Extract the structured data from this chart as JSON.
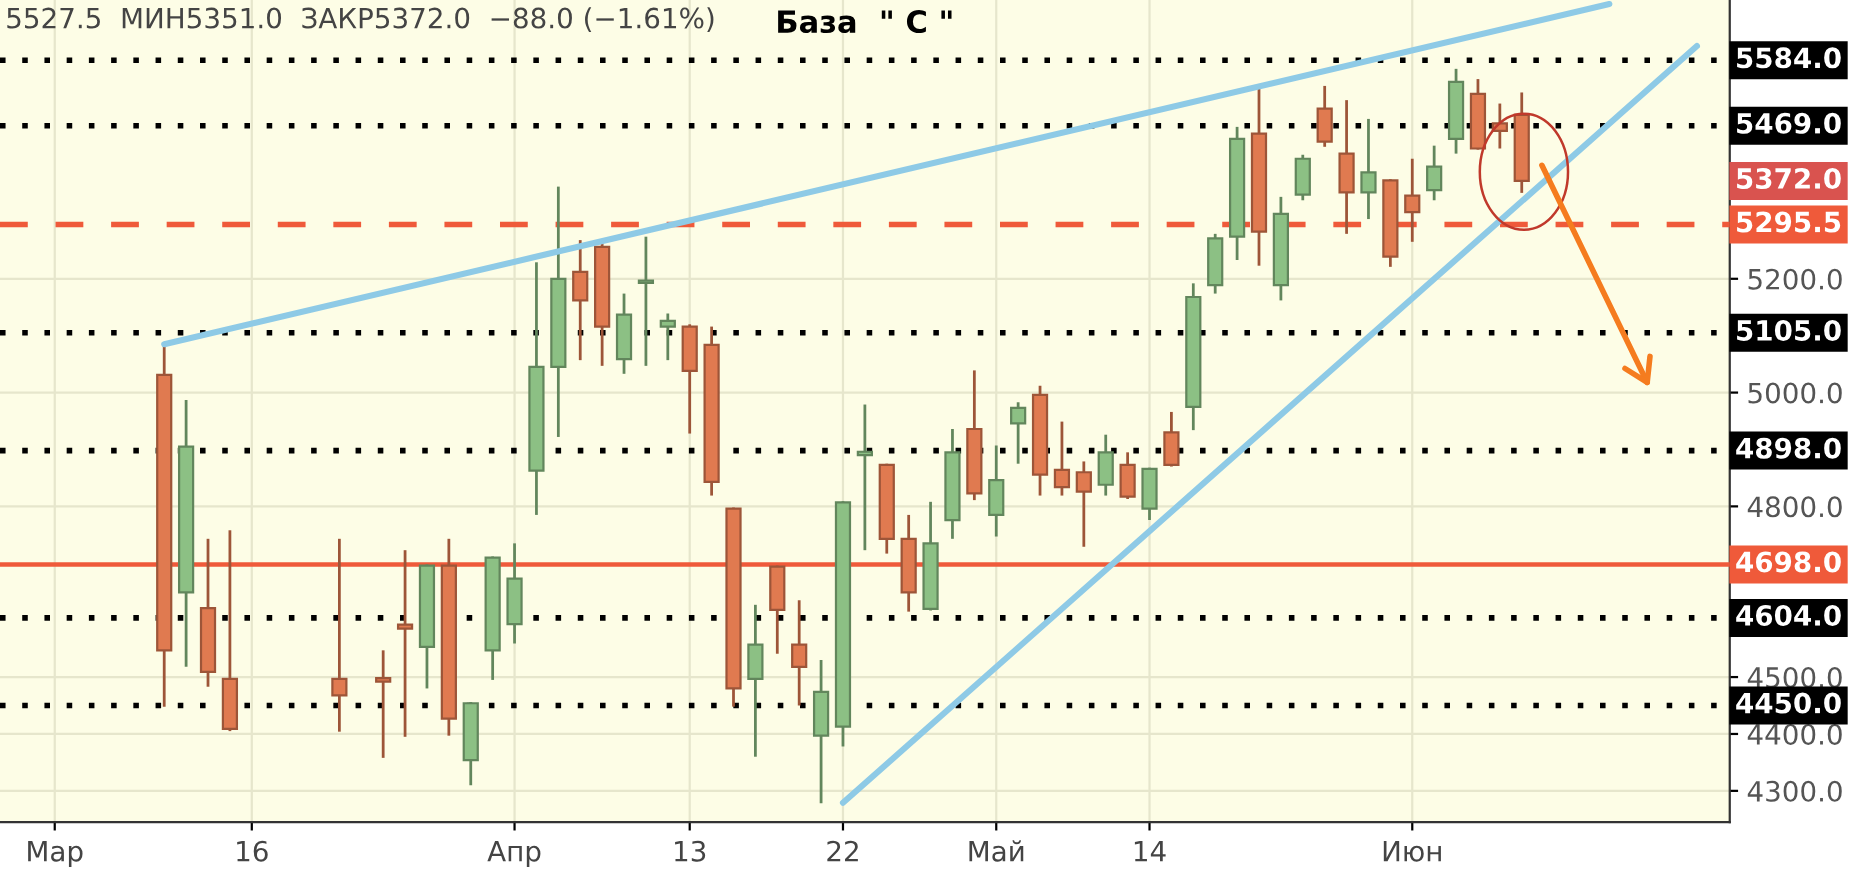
{
  "chart_data": {
    "type": "candlestick",
    "title": "База  \" С \"",
    "categories": [
      null,
      null,
      "Мар",
      null,
      null,
      null,
      null,
      null,
      null,
      null,
      null,
      "16",
      null,
      null,
      null,
      null,
      null,
      null,
      null,
      null,
      null,
      null,
      null,
      "Апр",
      null,
      null,
      null,
      null,
      null,
      null,
      null,
      "13",
      null,
      null,
      null,
      null,
      null,
      null,
      "22",
      null,
      null,
      null,
      null,
      null,
      null,
      "Май",
      null,
      null,
      null,
      null,
      null,
      null,
      "14",
      null,
      null,
      null,
      null,
      null,
      null,
      null,
      null,
      null,
      null,
      null,
      "Июн",
      null,
      null,
      null,
      null,
      null,
      null,
      null,
      null,
      null,
      null,
      null,
      null,
      null,
      null
    ],
    "ohlc": [
      null,
      null,
      null,
      null,
      null,
      null,
      null,
      [
        5031,
        5083,
        4448,
        4547
      ],
      [
        4649,
        4987,
        4518,
        4905
      ],
      [
        4621,
        4743,
        4483,
        4509
      ],
      [
        4497,
        4758,
        4405,
        4409
      ],
      null,
      null,
      null,
      null,
      [
        4497,
        4743,
        4404,
        4468
      ],
      null,
      [
        4498,
        4547,
        4358,
        4492
      ],
      [
        4592,
        4723,
        4395,
        4585
      ],
      [
        4553,
        4698,
        4480,
        4696
      ],
      [
        4696,
        4743,
        4397,
        4427
      ],
      [
        4354,
        4456,
        4310,
        4454
      ],
      [
        4547,
        4712,
        4495,
        4710
      ],
      [
        4593,
        4735,
        4559,
        4673
      ],
      [
        4863,
        5229,
        4785,
        5045
      ],
      [
        5045,
        5362,
        4922,
        5200
      ],
      [
        5212,
        5268,
        5057,
        5162
      ],
      [
        5256,
        5262,
        5047,
        5116
      ],
      [
        5059,
        5174,
        5033,
        5137
      ],
      [
        5193,
        5274,
        5047,
        5197
      ],
      [
        5116,
        5139,
        5057,
        5126
      ],
      [
        5116,
        5120,
        4928,
        5038
      ],
      [
        5084,
        5116,
        4819,
        4843
      ],
      [
        4796,
        4798,
        4448,
        4480
      ],
      [
        4497,
        4627,
        4360,
        4557
      ],
      [
        4694,
        4696,
        4541,
        4618
      ],
      [
        4557,
        4635,
        4450,
        4518
      ],
      [
        4397,
        4530,
        4278,
        4474
      ],
      [
        4413,
        4809,
        4378,
        4807
      ],
      [
        4890,
        4979,
        4723,
        4896
      ],
      [
        4873,
        4875,
        4717,
        4743
      ],
      [
        4743,
        4785,
        4615,
        4649
      ],
      [
        4620,
        4808,
        4617,
        4735
      ],
      [
        4776,
        4936,
        4743,
        4895
      ],
      [
        4936,
        5039,
        4811,
        4823
      ],
      [
        4785,
        4907,
        4747,
        4846
      ],
      [
        4946,
        4983,
        4875,
        4973
      ],
      [
        4996,
        5012,
        4819,
        4856
      ],
      [
        4864,
        4949,
        4819,
        4834
      ],
      [
        4860,
        4879,
        4729,
        4826
      ],
      [
        4838,
        4926,
        4819,
        4895
      ],
      [
        4873,
        4895,
        4813,
        4817
      ],
      [
        4796,
        4868,
        4776,
        4866
      ],
      [
        4930,
        4966,
        4870,
        4873
      ],
      [
        4975,
        5192,
        4934,
        5168
      ],
      [
        5189,
        5279,
        5174,
        5271
      ],
      [
        5274,
        5467,
        5233,
        5446
      ],
      [
        5455,
        5537,
        5223,
        5283
      ],
      [
        5189,
        5344,
        5162,
        5314
      ],
      [
        5348,
        5418,
        5338,
        5411
      ],
      [
        5499,
        5539,
        5432,
        5441
      ],
      [
        5420,
        5514,
        5279,
        5352
      ],
      [
        5352,
        5481,
        5305,
        5387
      ],
      [
        5373,
        5375,
        5221,
        5239
      ],
      [
        5346,
        5411,
        5265,
        5317
      ],
      [
        5356,
        5434,
        5338,
        5397
      ],
      [
        5446,
        5569,
        5420,
        5546
      ],
      [
        5525,
        5551,
        5427,
        5429
      ],
      [
        5473,
        5508,
        5429,
        5460
      ],
      [
        5488,
        5527.5,
        5351,
        5372
      ],
      null,
      null,
      null,
      null,
      null,
      null,
      null,
      null,
      null
    ],
    "colors": [
      null,
      null,
      null,
      null,
      null,
      null,
      null,
      "#e07a50",
      "#8cc084",
      "#e07a50",
      "#e07a50",
      null,
      null,
      null,
      null,
      "#e07a50",
      null,
      "#e07a50",
      "#e07a50",
      "#8cc084",
      "#e07a50",
      "#8cc084",
      "#8cc084",
      "#8cc084",
      "#8cc084",
      "#8cc084",
      "#e07a50",
      "#e07a50",
      "#8cc084",
      "#8cc084",
      "#8cc084",
      "#e07a50",
      "#e07a50",
      "#e07a50",
      "#8cc084",
      "#e07a50",
      "#e07a50",
      "#8cc084",
      "#8cc084",
      "#8cc084",
      "#e07a50",
      "#e07a50",
      "#8cc084",
      "#8cc084",
      "#e07a50",
      "#8cc084",
      "#8cc084",
      "#e07a50",
      "#e07a50",
      "#e07a50",
      "#8cc084",
      "#e07a50",
      "#8cc084",
      "#e07a50",
      "#8cc084",
      "#8cc084",
      "#8cc084",
      "#e07a50",
      "#8cc084",
      "#8cc084",
      "#e07a50",
      "#e07a50",
      "#8cc084",
      "#e07a50",
      "#e07a50",
      "#8cc084",
      "#8cc084",
      "#e07a50",
      "#e07a50",
      "#e07a50",
      null,
      null,
      null,
      null,
      null,
      null,
      null,
      null,
      null
    ],
    "series": [
      {
        "type": "line",
        "color": "#8ecae6",
        "values": [
          null,
          null,
          null,
          null,
          null,
          null,
          null,
          5085,
          null,
          null,
          null,
          null,
          null,
          null,
          null,
          null,
          null,
          null,
          null,
          null,
          null,
          null,
          null,
          null,
          null,
          null,
          null,
          null,
          null,
          null,
          null,
          null,
          null,
          null,
          null,
          null,
          null,
          null,
          null,
          null,
          null,
          null,
          null,
          null,
          null,
          null,
          null,
          null,
          null,
          null,
          null,
          null,
          null,
          null,
          null,
          null,
          null,
          null,
          null,
          null,
          null,
          null,
          null,
          null,
          null,
          null,
          null,
          null,
          null,
          null,
          null,
          null,
          null,
          5683,
          null,
          null,
          null,
          null,
          null
        ]
      },
      {
        "type": "line",
        "color": "#8ecae6",
        "values": [
          null,
          null,
          null,
          null,
          null,
          null,
          null,
          null,
          null,
          null,
          null,
          null,
          null,
          null,
          null,
          null,
          null,
          null,
          null,
          null,
          null,
          null,
          null,
          null,
          null,
          null,
          null,
          null,
          null,
          null,
          null,
          null,
          null,
          null,
          null,
          null,
          null,
          null,
          4279,
          null,
          null,
          null,
          null,
          null,
          null,
          null,
          null,
          null,
          null,
          null,
          null,
          null,
          null,
          null,
          null,
          null,
          null,
          null,
          null,
          null,
          null,
          null,
          null,
          null,
          null,
          null,
          null,
          null,
          null,
          null,
          null,
          null,
          null,
          null,
          null,
          null,
          null,
          5609,
          null
        ]
      }
    ],
    "ylim": [
      4245,
      5690
    ],
    "yticks": [
      {
        "value": 4300,
        "label": "4300.0"
      },
      {
        "value": 4400,
        "label": "4400.0"
      },
      {
        "value": 4500,
        "label": "4500.0"
      },
      {
        "value": 4800,
        "label": "4800.0"
      },
      {
        "value": 5000,
        "label": "5000.0"
      },
      {
        "value": 5200,
        "label": "5200.0"
      }
    ],
    "grid": true,
    "ref_lines": [
      {
        "axis": "y",
        "value": 5584,
        "label": "5584.0",
        "color": "#000000",
        "line_style": "dotted"
      },
      {
        "axis": "y",
        "value": 5469,
        "label": "5469.0",
        "color": "#000000",
        "line_style": "dotted"
      },
      {
        "axis": "y",
        "value": 5295.5,
        "label": "5295.5",
        "color": "#ef5a3a",
        "line_style": "dashed"
      },
      {
        "axis": "y",
        "value": 5105,
        "label": "5105.0",
        "color": "#000000",
        "line_style": "dotted"
      },
      {
        "axis": "y",
        "value": 4898,
        "label": "4898.0",
        "color": "#000000",
        "line_style": "dotted"
      },
      {
        "axis": "y",
        "value": 4698,
        "label": "4698.0",
        "color": "#ef5a3a",
        "line_style": "solid"
      },
      {
        "axis": "y",
        "value": 4604,
        "label": "4604.0",
        "color": "#000000",
        "line_style": "dotted"
      },
      {
        "axis": "y",
        "value": 4450,
        "label": "4450.0",
        "color": "#000000",
        "line_style": "dotted"
      }
    ],
    "annotations": [
      "5527.5  МИН5351.0  ЗАКР5372.0  −88.0 (−1.61%)",
      "5372.0"
    ]
  }
}
